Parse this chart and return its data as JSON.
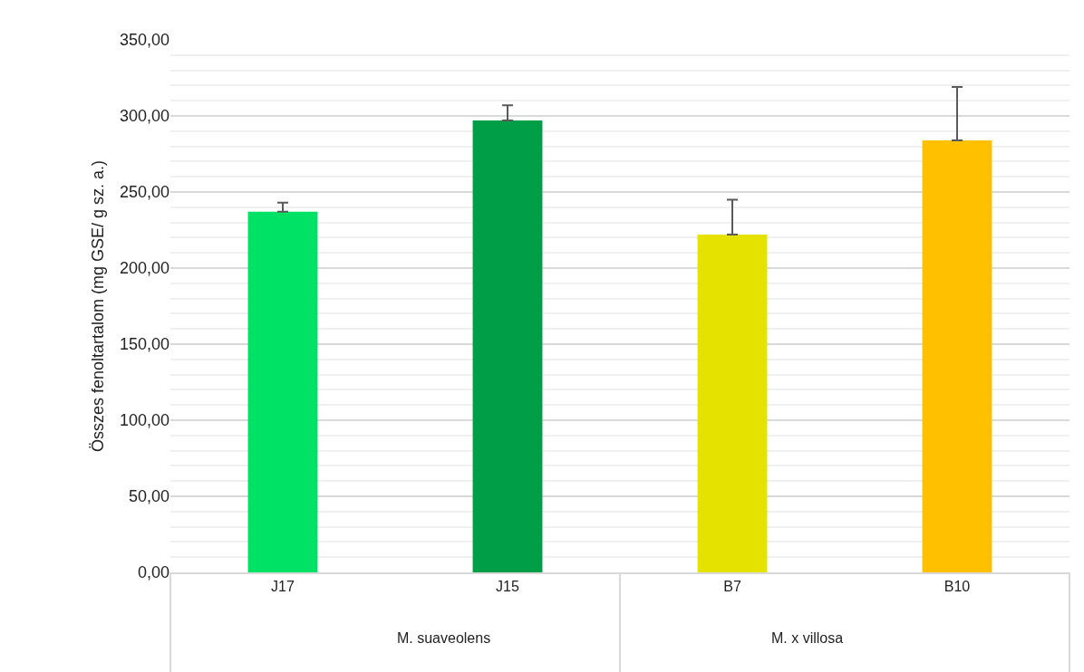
{
  "chart_data": {
    "type": "bar",
    "ylabel": "Összes fenoltartalom (mg GSE/ g sz. a.)",
    "categories": [
      "J17",
      "J15",
      "B7",
      "B10"
    ],
    "values": [
      237,
      297,
      222,
      284
    ],
    "colors": [
      "#00e266",
      "#009e47",
      "#e6e200",
      "#ffc000"
    ],
    "errors": [
      [
        237,
        243
      ],
      [
        297,
        307
      ],
      [
        222,
        245
      ],
      [
        284,
        319
      ]
    ],
    "annotations": [
      "M. suaveolens",
      "M. x villosa"
    ],
    "ylim": [
      0,
      350
    ],
    "yticks": [
      {
        "value": 0,
        "label": "0,00"
      },
      {
        "value": 10,
        "label": null
      },
      {
        "value": 20,
        "label": null
      },
      {
        "value": 30,
        "label": null
      },
      {
        "value": 40,
        "label": null
      },
      {
        "value": 50,
        "label": "50,00"
      },
      {
        "value": 60,
        "label": null
      },
      {
        "value": 70,
        "label": null
      },
      {
        "value": 80,
        "label": null
      },
      {
        "value": 90,
        "label": null
      },
      {
        "value": 100,
        "label": "100,00"
      },
      {
        "value": 110,
        "label": null
      },
      {
        "value": 120,
        "label": null
      },
      {
        "value": 130,
        "label": null
      },
      {
        "value": 140,
        "label": null
      },
      {
        "value": 150,
        "label": "150,00"
      },
      {
        "value": 160,
        "label": null
      },
      {
        "value": 170,
        "label": null
      },
      {
        "value": 180,
        "label": null
      },
      {
        "value": 190,
        "label": null
      },
      {
        "value": 200,
        "label": "200,00"
      },
      {
        "value": 210,
        "label": null
      },
      {
        "value": 220,
        "label": null
      },
      {
        "value": 230,
        "label": null
      },
      {
        "value": 240,
        "label": null
      },
      {
        "value": 250,
        "label": "250,00"
      },
      {
        "value": 260,
        "label": null
      },
      {
        "value": 270,
        "label": null
      },
      {
        "value": 280,
        "label": null
      },
      {
        "value": 290,
        "label": null
      },
      {
        "value": 300,
        "label": "300,00"
      },
      {
        "value": 310,
        "label": null
      },
      {
        "value": 320,
        "label": null
      },
      {
        "value": 330,
        "label": null
      },
      {
        "value": 340,
        "label": null
      },
      {
        "value": 350,
        "label": "350,00"
      }
    ],
    "grid": "y"
  }
}
